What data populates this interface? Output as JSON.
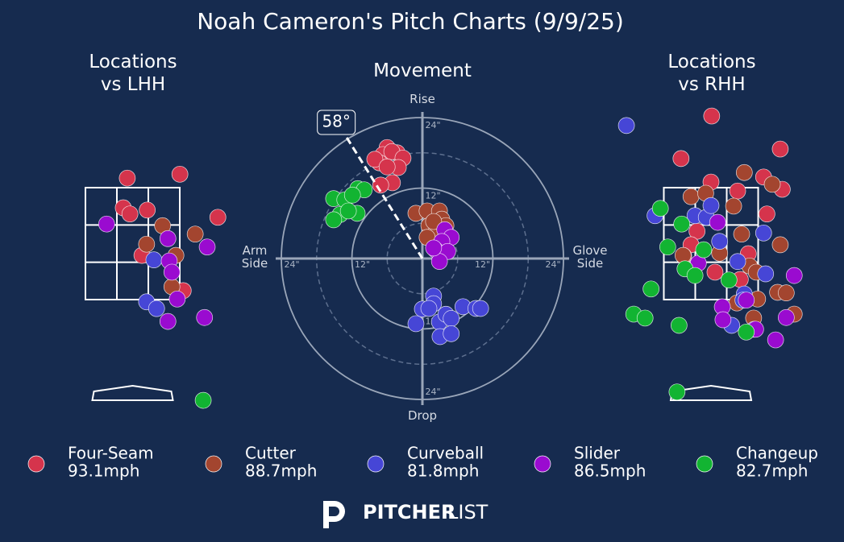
{
  "title": "Noah Cameron's Pitch Charts (9/9/25)",
  "logo": {
    "bold": "PITCHER",
    "light": "LIST"
  },
  "legend": [
    {
      "name": "Four-Seam",
      "color": "#d5344c",
      "velocity": {
        "value": 93.1,
        "label": "93.1mph"
      }
    },
    {
      "name": "Cutter",
      "color": "#a3452f",
      "velocity": {
        "value": 88.7,
        "label": "88.7mph"
      }
    },
    {
      "name": "Curveball",
      "color": "#4646d6",
      "velocity": {
        "value": 81.8,
        "label": "81.8mph"
      }
    },
    {
      "name": "Slider",
      "color": "#9a0bd0",
      "velocity": {
        "value": 86.5,
        "label": "86.5mph"
      }
    },
    {
      "name": "Changeup",
      "color": "#12b432",
      "velocity": {
        "value": 82.7,
        "label": "82.7mph"
      }
    }
  ],
  "chart_data": [
    {
      "type": "scatter",
      "title": "Locations vs LHH",
      "xlim": [
        -1.3,
        1.3
      ],
      "ylim": [
        -0.5,
        5
      ],
      "strike_zone": true,
      "series": [
        {
          "color": "#d5344c",
          "x": [
            -0.08,
            0.71,
            -0.14,
            -0.04,
            0.22,
            1.28,
            0.14,
            0.76
          ],
          "values": [
            3.67,
            3.74,
            3.14,
            3.03,
            3.1,
            2.97,
            2.29,
            1.66
          ]
        },
        {
          "color": "#a3452f",
          "x": [
            0.45,
            0.94,
            0.21,
            0.65,
            0.59
          ],
          "values": [
            2.82,
            2.67,
            2.49,
            2.29,
            1.73
          ]
        },
        {
          "color": "#4646d6",
          "x": [
            0.32,
            0.21,
            0.36
          ],
          "values": [
            2.21,
            1.46,
            1.34
          ]
        },
        {
          "color": "#9a0bd0",
          "x": [
            -0.39,
            0.53,
            1.12,
            0.55,
            0.59,
            0.67,
            0.53,
            1.08
          ],
          "values": [
            2.85,
            2.59,
            2.44,
            2.19,
            1.99,
            1.51,
            1.11,
            1.18
          ]
        },
        {
          "color": "#12b432",
          "x": [
            1.06
          ],
          "values": [
            -0.3
          ]
        }
      ]
    },
    {
      "type": "movement",
      "title": "Movement",
      "top_label": "Rise",
      "bottom_label": "Drop",
      "left_label": "Arm Side",
      "right_label": "Glove Side",
      "xlim": [
        -26,
        26
      ],
      "ylim": [
        -26,
        26
      ],
      "xticks": [
        {
          "value": -24,
          "label": "24\""
        },
        {
          "value": -12,
          "label": "12\""
        },
        {
          "value": 12,
          "label": "12\""
        },
        {
          "value": 24,
          "label": "24\""
        }
      ],
      "yticks": [
        {
          "value": -24,
          "label": "24\""
        },
        {
          "value": -12,
          "label": "12\""
        },
        {
          "value": 12,
          "label": "12\""
        },
        {
          "value": 24,
          "label": "24\""
        }
      ],
      "arm_angle": {
        "value": 58,
        "label": "58°"
      },
      "series": [
        {
          "color": "#d5344c",
          "x": [
            -6.0,
            -6.7,
            -4.3,
            -5.2,
            -7.3,
            -3.3,
            -8.1,
            -4.1,
            -6.0,
            -5.1,
            -7.1
          ],
          "values": [
            18.9,
            17.7,
            18.0,
            18.2,
            16.3,
            17.1,
            16.9,
            15.5,
            15.6,
            12.9,
            12.5
          ]
        },
        {
          "color": "#a3452f",
          "x": [
            -1.1,
            0.8,
            2.9,
            1.1,
            3.3,
            2.2,
            0.8,
            4.0,
            1.9
          ],
          "values": [
            7.7,
            8.1,
            8.1,
            5.6,
            6.7,
            4.3,
            3.6,
            5.6,
            6.3
          ]
        },
        {
          "color": "#4646d6",
          "x": [
            1.9,
            1.9,
            0,
            1.1,
            -1.1,
            2.9,
            4.0,
            4.9,
            3.0,
            4.9,
            6.9,
            9.1,
            9.9
          ],
          "values": [
            -6.4,
            -7.7,
            -8.6,
            -8.5,
            -11.1,
            -10.8,
            -9.5,
            -10.2,
            -13.3,
            -12.8,
            -8.2,
            -8.5,
            -8.5
          ]
        },
        {
          "color": "#9a0bd0",
          "x": [
            3.8,
            4.9,
            3.3,
            2.2,
            4.3,
            2.9,
            1.9
          ],
          "values": [
            4.9,
            3.6,
            2.9,
            1.5,
            1.2,
            -0.5,
            1.8
          ]
        },
        {
          "color": "#12b432",
          "x": [
            -15.1,
            -13.2,
            -11.0,
            -9.9,
            -11.1,
            -14.0,
            -15.1,
            -12.6,
            -11.9
          ],
          "values": [
            10.2,
            10.0,
            11.9,
            11.7,
            7.7,
            7.5,
            6.6,
            8.1,
            10.8
          ]
        }
      ]
    },
    {
      "type": "scatter",
      "title": "Locations vs RHH",
      "xlim": [
        -1.3,
        1.3
      ],
      "ylim": [
        -0.5,
        5
      ],
      "strike_zone": true,
      "series": [
        {
          "color": "#d5344c",
          "x": [
            0.01,
            -0.45,
            1.04,
            0,
            0.79,
            1.07,
            0.4,
            0.84,
            -0.21,
            -0.3,
            -0.41,
            0.56,
            0.06,
            0.44
          ],
          "values": [
            4.78,
            4.02,
            4.19,
            3.6,
            3.69,
            3.47,
            3.44,
            3.03,
            2.72,
            2.48,
            2.28,
            2.32,
            1.99,
            1.86
          ]
        },
        {
          "color": "#a3452f",
          "x": [
            0.5,
            0.92,
            -0.3,
            -0.08,
            0.34,
            0.46,
            1.04,
            0.13,
            -0.42,
            0.58,
            0.68,
            1.0,
            1.13,
            0.39,
            0.7,
            0.64,
            1.25
          ],
          "values": [
            3.77,
            3.56,
            3.34,
            3.4,
            3.17,
            2.67,
            2.48,
            2.33,
            2.29,
            2.1,
            1.99,
            1.63,
            1.62,
            1.44,
            1.51,
            1.17,
            1.24
          ]
        },
        {
          "color": "#4646d6",
          "x": [
            -1.27,
            -0.84,
            -0.24,
            -0.07,
            0,
            0.13,
            0.4,
            0.79,
            0.82,
            0.5,
            0.48,
            0.31,
            0.65
          ],
          "values": [
            4.61,
            3.0,
            3.0,
            2.97,
            3.18,
            2.54,
            2.18,
            2.69,
            1.96,
            1.6,
            1.49,
            1.04,
            0.97
          ]
        },
        {
          "color": "#9a0bd0",
          "x": [
            0.1,
            -0.19,
            1.25,
            0.17,
            0.18,
            0.53,
            1.13,
            0.97,
            0.67
          ],
          "values": [
            2.88,
            2.15,
            1.93,
            1.37,
            1.14,
            1.49,
            1.18,
            0.78,
            0.97
          ]
        },
        {
          "color": "#12b432",
          "x": [
            -0.76,
            -0.44,
            -0.65,
            -0.11,
            -0.39,
            -0.24,
            0.27,
            -0.9,
            -1.16,
            -0.99,
            -0.48,
            0.53,
            -0.51
          ],
          "values": [
            3.13,
            2.85,
            2.44,
            2.39,
            2.05,
            1.93,
            1.85,
            1.69,
            1.24,
            1.17,
            1.04,
            0.92,
            -0.15
          ]
        }
      ]
    }
  ]
}
